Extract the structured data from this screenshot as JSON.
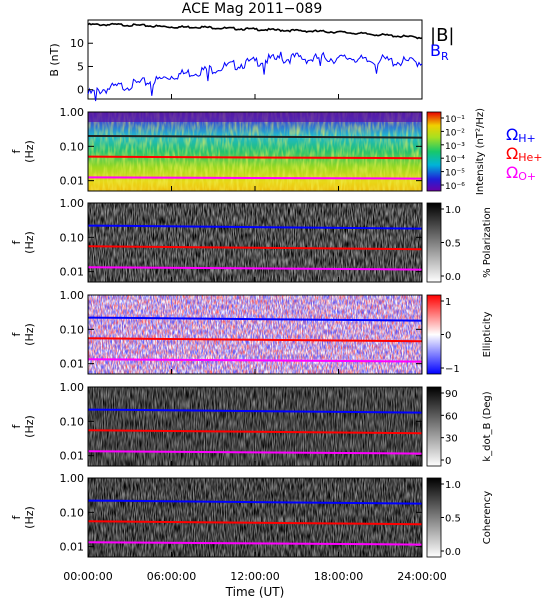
{
  "title": "ACE Mag 2011−089",
  "xaxis": {
    "label": "Time (UT)",
    "ticks": [
      "00:00:00",
      "06:00:00",
      "12:00:00",
      "18:00:00",
      "24:00:00"
    ],
    "range_hours": [
      0,
      24
    ]
  },
  "gyro_legend": {
    "h_plus": "ΩH+",
    "he_plus": "ΩHe+",
    "o_plus": "ΩO+",
    "colors": {
      "h_plus": "#0000ff",
      "he_plus": "#ff0000",
      "o_plus": "#ff00ff"
    }
  },
  "freq_ticks": [
    "1.00",
    "0.10",
    "0.01"
  ],
  "freq_label": "f (Hz)",
  "colors": {
    "b_total": "#000000",
    "b_r": "#0000ff",
    "h_line": "#0000ff",
    "he_line": "#ff0000",
    "o_line": "#ff00ff"
  },
  "chart_data": [
    {
      "type": "line",
      "title": "ACE Mag 2011−089",
      "ylabel": "B (nT)",
      "yticks": [
        "10",
        "5",
        "0"
      ],
      "ylim": [
        -2,
        15
      ],
      "legend": [
        "|B|",
        "BR"
      ],
      "series": [
        {
          "name": "|B|",
          "x": [
            0,
            2,
            4,
            6,
            8,
            10,
            12,
            14,
            16,
            18,
            20,
            22,
            24
          ],
          "values": [
            14,
            14,
            13.8,
            13.5,
            13.5,
            13.2,
            13.0,
            12.8,
            12.6,
            12.4,
            12.0,
            11.6,
            11.2
          ]
        },
        {
          "name": "BR",
          "x": [
            0,
            1,
            2,
            3,
            4,
            5,
            6,
            7,
            8,
            9,
            10,
            11,
            12,
            13,
            14,
            15,
            16,
            17,
            18,
            19,
            20,
            21,
            22,
            23,
            24
          ],
          "values": [
            -1,
            0,
            0.5,
            1,
            1.5,
            2,
            3,
            3.5,
            4,
            4.5,
            5,
            5.5,
            6,
            6.5,
            6.5,
            7,
            6.5,
            7,
            6.5,
            7,
            6,
            6.5,
            6,
            6,
            6
          ]
        }
      ]
    },
    {
      "type": "heatmap",
      "name": "intensity",
      "ylabel": "f (Hz)",
      "yscale": "log",
      "ylim": [
        0.005,
        1.0
      ],
      "colorbar": {
        "label": "Intensity (nT²/Hz)",
        "ticks": [
          "10⁻¹",
          "10⁻²",
          "10⁻³",
          "10⁻⁴",
          "10⁻⁵",
          "10⁻⁶"
        ],
        "scale": "rainbow"
      },
      "gyro_lines": {
        "x": [
          0,
          24
        ],
        "h_plus": [
          0.2,
          0.18
        ],
        "he_plus": [
          0.05,
          0.045
        ],
        "o_plus": [
          0.0125,
          0.0115
        ]
      }
    },
    {
      "type": "heatmap",
      "name": "polarization",
      "ylabel": "f (Hz)",
      "yscale": "log",
      "ylim": [
        0.005,
        1.0
      ],
      "colorbar": {
        "label": "% Polarization",
        "ticks": [
          "1.0",
          "0.5",
          "0.0"
        ],
        "scale": "gray"
      },
      "gyro_lines": {
        "x": [
          0,
          24
        ],
        "h_plus": [
          0.22,
          0.18
        ],
        "he_plus": [
          0.055,
          0.045
        ],
        "o_plus": [
          0.0135,
          0.0115
        ]
      }
    },
    {
      "type": "heatmap",
      "name": "ellipticity",
      "ylabel": "f (Hz)",
      "yscale": "log",
      "ylim": [
        0.005,
        1.0
      ],
      "colorbar": {
        "label": "Ellipticity",
        "ticks": [
          "1",
          "0",
          "−1"
        ],
        "scale": "bwr"
      },
      "gyro_lines": {
        "x": [
          0,
          24
        ],
        "h_plus": [
          0.22,
          0.18
        ],
        "he_plus": [
          0.055,
          0.045
        ],
        "o_plus": [
          0.0135,
          0.0115
        ]
      }
    },
    {
      "type": "heatmap",
      "name": "k_dot_b",
      "ylabel": "f (Hz)",
      "yscale": "log",
      "ylim": [
        0.005,
        1.0
      ],
      "colorbar": {
        "label": "k_dot_B (Deg)",
        "ticks": [
          "90",
          "60",
          "30",
          "0"
        ],
        "scale": "gray"
      },
      "gyro_lines": {
        "x": [
          0,
          24
        ],
        "h_plus": [
          0.22,
          0.18
        ],
        "he_plus": [
          0.055,
          0.045
        ],
        "o_plus": [
          0.0135,
          0.0115
        ]
      }
    },
    {
      "type": "heatmap",
      "name": "coherency",
      "ylabel": "f (Hz)",
      "yscale": "log",
      "ylim": [
        0.005,
        1.0
      ],
      "colorbar": {
        "label": "Coherency",
        "ticks": [
          "1.0",
          "0.5",
          "0.0"
        ],
        "scale": "gray"
      },
      "gyro_lines": {
        "x": [
          0,
          24
        ],
        "h_plus": [
          0.22,
          0.18
        ],
        "he_plus": [
          0.055,
          0.045
        ],
        "o_plus": [
          0.0135,
          0.0115
        ]
      }
    }
  ]
}
